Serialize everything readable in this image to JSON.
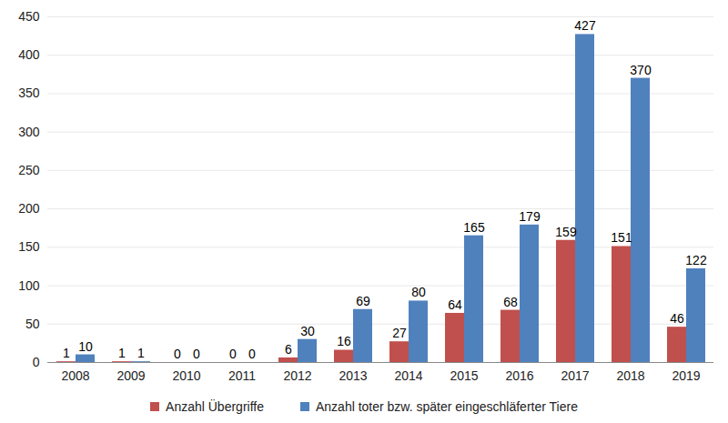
{
  "chart_data": {
    "type": "bar",
    "categories": [
      "2008",
      "2009",
      "2010",
      "2011",
      "2012",
      "2013",
      "2014",
      "2015",
      "2016",
      "2017",
      "2018",
      "2019"
    ],
    "series": [
      {
        "name": "Anzahl Übergriffe",
        "color": "#c0504d",
        "values": [
          1,
          1,
          0,
          0,
          6,
          16,
          27,
          64,
          68,
          159,
          151,
          46
        ]
      },
      {
        "name": "Anzahl toter bzw. später eingeschläferter Tiere",
        "color": "#4f81bd",
        "values": [
          10,
          1,
          0,
          0,
          30,
          69,
          80,
          165,
          179,
          427,
          370,
          122
        ]
      }
    ],
    "ylim": [
      0,
      450
    ],
    "yticks": [
      0,
      50,
      100,
      150,
      200,
      250,
      300,
      350,
      400,
      450
    ],
    "grid": true,
    "data_labels": true,
    "legend": "bottom"
  }
}
